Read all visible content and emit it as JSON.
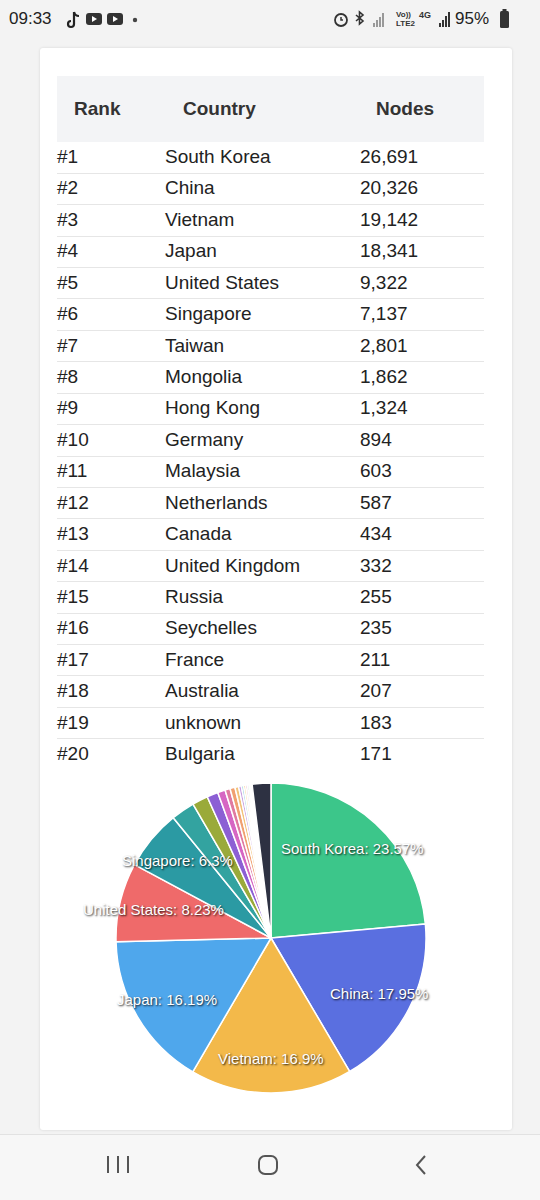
{
  "status_bar": {
    "time": "09:33",
    "network": [
      "Vo))",
      "LTE2",
      "4G"
    ],
    "battery": "95%"
  },
  "table": {
    "header": [
      "Rank",
      "Country",
      "Nodes"
    ],
    "rows": [
      [
        "#1",
        "South Korea",
        "26,691"
      ],
      [
        "#2",
        "China",
        "20,326"
      ],
      [
        "#3",
        "Vietnam",
        "19,142"
      ],
      [
        "#4",
        "Japan",
        "18,341"
      ],
      [
        "#5",
        "United States",
        "9,322"
      ],
      [
        "#6",
        "Singapore",
        "7,137"
      ],
      [
        "#7",
        "Taiwan",
        "2,801"
      ],
      [
        "#8",
        "Mongolia",
        "1,862"
      ],
      [
        "#9",
        "Hong Kong",
        "1,324"
      ],
      [
        "#10",
        "Germany",
        "894"
      ],
      [
        "#11",
        "Malaysia",
        "603"
      ],
      [
        "#12",
        "Netherlands",
        "587"
      ],
      [
        "#13",
        "Canada",
        "434"
      ],
      [
        "#14",
        "United Kingdom",
        "332"
      ],
      [
        "#15",
        "Russia",
        "255"
      ],
      [
        "#16",
        "Seychelles",
        "235"
      ],
      [
        "#17",
        "France",
        "211"
      ],
      [
        "#18",
        "Australia",
        "207"
      ],
      [
        "#19",
        "unknown",
        "183"
      ],
      [
        "#20",
        "Bulgaria",
        "171"
      ]
    ]
  },
  "chart_data": {
    "type": "pie",
    "categories": [
      "South Korea",
      "China",
      "Vietnam",
      "Japan",
      "United States",
      "Singapore",
      null,
      null,
      null,
      null,
      null,
      null,
      null,
      null,
      null,
      null,
      null,
      null,
      null,
      null,
      null
    ],
    "values": [
      23.57,
      17.95,
      16.9,
      16.19,
      8.23,
      6.3,
      2.47,
      1.64,
      1.17,
      0.79,
      0.53,
      0.52,
      0.38,
      0.29,
      0.23,
      0.21,
      0.19,
      0.18,
      0.16,
      0.15,
      1.95
    ],
    "value_labels": [
      "South Korea: 23.57%",
      "China: 17.95%",
      "Vietnam: 16.9%",
      "Japan: 16.19%",
      "United States: 8.23%",
      "Singapore: 6.3%",
      null,
      null,
      null,
      null,
      null,
      null,
      null,
      null,
      null,
      null,
      null,
      null,
      null,
      null,
      null
    ],
    "colors": [
      "#3cc68a",
      "#5a6fe0",
      "#f3b94a",
      "#4fa7ec",
      "#ef6a6a",
      "#2b9aa3",
      "#33a3a0",
      "#9aaa3a",
      "#8c5fd4",
      "#d666c3",
      "#e079a0",
      "#f0a070",
      "#f2c27a",
      "#c9a0e0",
      "#a0d0e0",
      "#f7d08a",
      "#e8a0c0",
      "#b0e0c0",
      "#cccccc",
      "#f0c0a0",
      "#2d3142"
    ],
    "data_labels": true
  }
}
